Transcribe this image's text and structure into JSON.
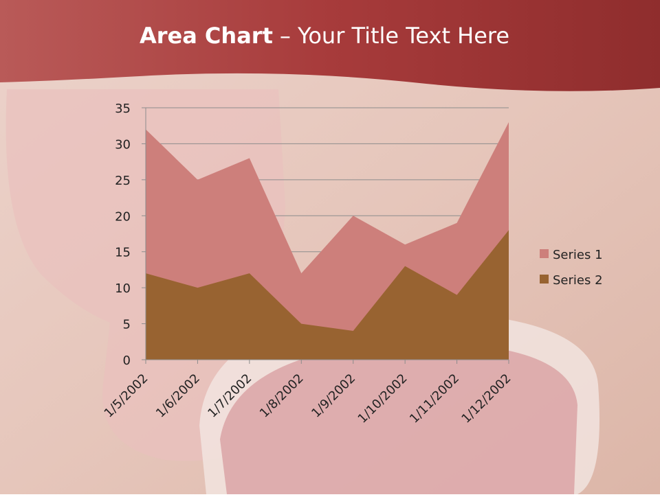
{
  "chart_data": {
    "type": "area",
    "title_bold": "Area Chart",
    "title": "– Your Title Text Here",
    "categories": [
      "1/5/2002",
      "1/6/2002",
      "1/7/2002",
      "1/8/2002",
      "1/9/2002",
      "1/10/2002",
      "1/11/2002",
      "1/12/2002"
    ],
    "series": [
      {
        "name": "Series 1",
        "color": "#cd7f7b",
        "values": [
          32,
          25,
          28,
          12,
          20,
          16,
          19,
          33
        ]
      },
      {
        "name": "Series 2",
        "color": "#986331",
        "values": [
          12,
          10,
          12,
          5,
          4,
          13,
          9,
          18
        ]
      }
    ],
    "ylim": [
      0,
      35
    ],
    "yticks": [
      0,
      5,
      10,
      15,
      20,
      25,
      30,
      35
    ],
    "grid": true,
    "legend": "right"
  }
}
